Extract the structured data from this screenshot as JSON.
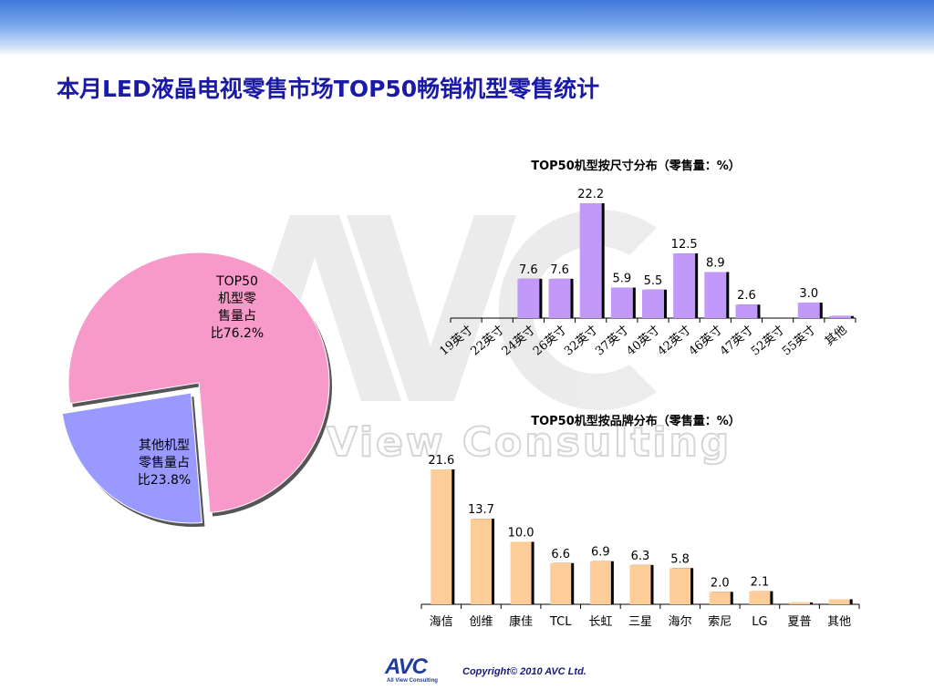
{
  "page_title": "本月LED液晶电视零售市场TOP50畅销机型零售统计",
  "watermark": {
    "text": "View Consulting",
    "letters": "AVC"
  },
  "footer": {
    "logo": "AVC",
    "logo_sub": "All View Consulting",
    "copyright": "Copyright© 2010 AVC Ltd."
  },
  "colors": {
    "pie_top50": "#f79ac9",
    "pie_other": "#9999ff",
    "size_bars": "#c299fb",
    "brand_bars": "#fccd99",
    "title": "#1a1aa6",
    "bar_shadow": "#000000"
  },
  "chart_data": [
    {
      "type": "pie",
      "slices": [
        {
          "label_lines": [
            "TOP50",
            "机型零",
            "售量占",
            "比76.2%"
          ],
          "value": 76.2
        },
        {
          "label_lines": [
            "其他机型",
            "零售量占",
            "比23.8%"
          ],
          "value": 23.8
        }
      ]
    },
    {
      "type": "bar",
      "title": "TOP50机型按尺寸分布（零售量：%）",
      "categories": [
        "19英寸",
        "22英寸",
        "24英寸",
        "26英寸",
        "32英寸",
        "37英寸",
        "40英寸",
        "42英寸",
        "46英寸",
        "47英寸",
        "52英寸",
        "55英寸",
        "其他"
      ],
      "values": [
        0,
        0,
        7.6,
        7.6,
        22.2,
        5.9,
        5.5,
        12.5,
        8.9,
        2.6,
        0,
        3.0,
        0.4
      ],
      "labels": [
        "",
        "",
        "7.6",
        "7.6",
        "22.2",
        "5.9",
        "5.5",
        "12.5",
        "8.9",
        "2.6",
        "",
        "3.0",
        ""
      ],
      "ylim": [
        0,
        22.2
      ]
    },
    {
      "type": "bar",
      "title": "TOP50机型按品牌分布（零售量：%）",
      "categories": [
        "海信",
        "创维",
        "康佳",
        "TCL",
        "长虹",
        "三星",
        "海尔",
        "索尼",
        "LG",
        "夏普",
        "其他"
      ],
      "values": [
        21.6,
        13.7,
        10.0,
        6.6,
        6.9,
        6.3,
        5.8,
        2.0,
        2.1,
        0.3,
        0.8
      ],
      "labels": [
        "21.6",
        "13.7",
        "10.0",
        "6.6",
        "6.9",
        "6.3",
        "5.8",
        "2.0",
        "2.1",
        "",
        ""
      ],
      "ylim": [
        0,
        21.6
      ]
    }
  ]
}
